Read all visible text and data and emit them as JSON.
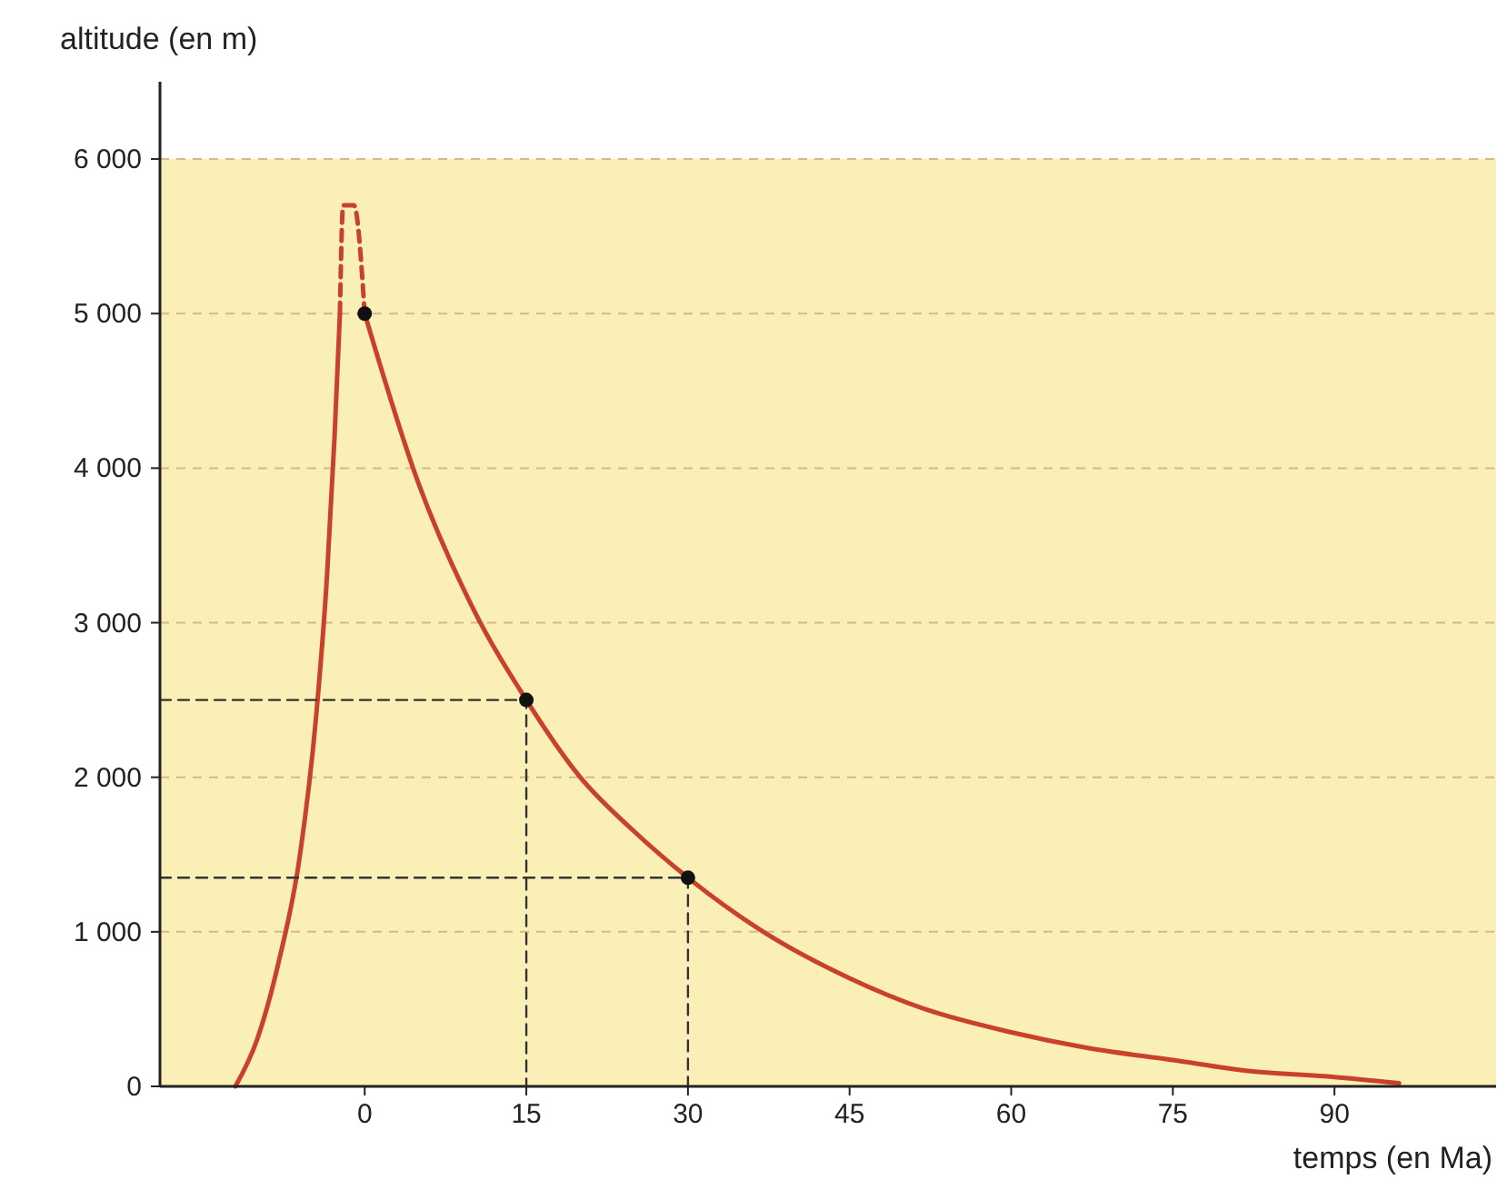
{
  "chart_data": {
    "type": "line",
    "xlabel": "temps (en Ma)",
    "ylabel": "altitude (en m)",
    "xlim": [
      -19,
      105
    ],
    "ylim": [
      0,
      6500
    ],
    "xticks": [
      0,
      15,
      30,
      45,
      60,
      75,
      90
    ],
    "yticks": [
      0,
      {
        "value": 1000,
        "label": "1 000"
      },
      {
        "value": 2000,
        "label": "2 000"
      },
      {
        "value": 3000,
        "label": "3 000"
      },
      {
        "value": 4000,
        "label": "4 000"
      },
      {
        "value": 5000,
        "label": "5 000"
      },
      {
        "value": 6000,
        "label": "6 000"
      }
    ],
    "grid": "y",
    "bands": [
      {
        "axis": "y",
        "from": 0,
        "to": 6000,
        "color": "#fbefb8"
      }
    ],
    "series": [
      {
        "color": "#c8412b",
        "line_style": "solid",
        "x": [
          -12,
          -10,
          -8,
          -6,
          -4.5,
          -3.5,
          -2.8,
          -2.3
        ],
        "values": [
          0,
          300,
          800,
          1500,
          2400,
          3300,
          4200,
          5000
        ]
      },
      {
        "color": "#c8412b",
        "line_style": "dashed",
        "x": [
          -2.3,
          -2,
          -1,
          0
        ],
        "values": [
          5000,
          5700,
          5700,
          5000
        ]
      },
      {
        "color": "#c8412b",
        "line_style": "solid",
        "x": [
          0,
          5,
          10,
          15,
          20,
          25,
          30,
          37,
          45,
          52,
          60,
          67,
          75,
          82,
          90,
          96
        ],
        "values": [
          5000,
          3900,
          3100,
          2500,
          2000,
          1650,
          1350,
          1000,
          700,
          500,
          350,
          250,
          170,
          100,
          60,
          20
        ]
      },
      {
        "color": "#333333",
        "line_style": "dashed",
        "x": [
          -19,
          15,
          15
        ],
        "values": [
          2500,
          2500,
          0
        ]
      },
      {
        "color": "#333333",
        "line_style": "dashed",
        "x": [
          -19,
          30,
          30
        ],
        "values": [
          1350,
          1350,
          0
        ]
      },
      {
        "type": "scatter",
        "marker": "circle",
        "color": "#111111",
        "x": [
          0,
          15,
          30
        ],
        "values": [
          5000,
          2500,
          1350
        ]
      }
    ]
  }
}
